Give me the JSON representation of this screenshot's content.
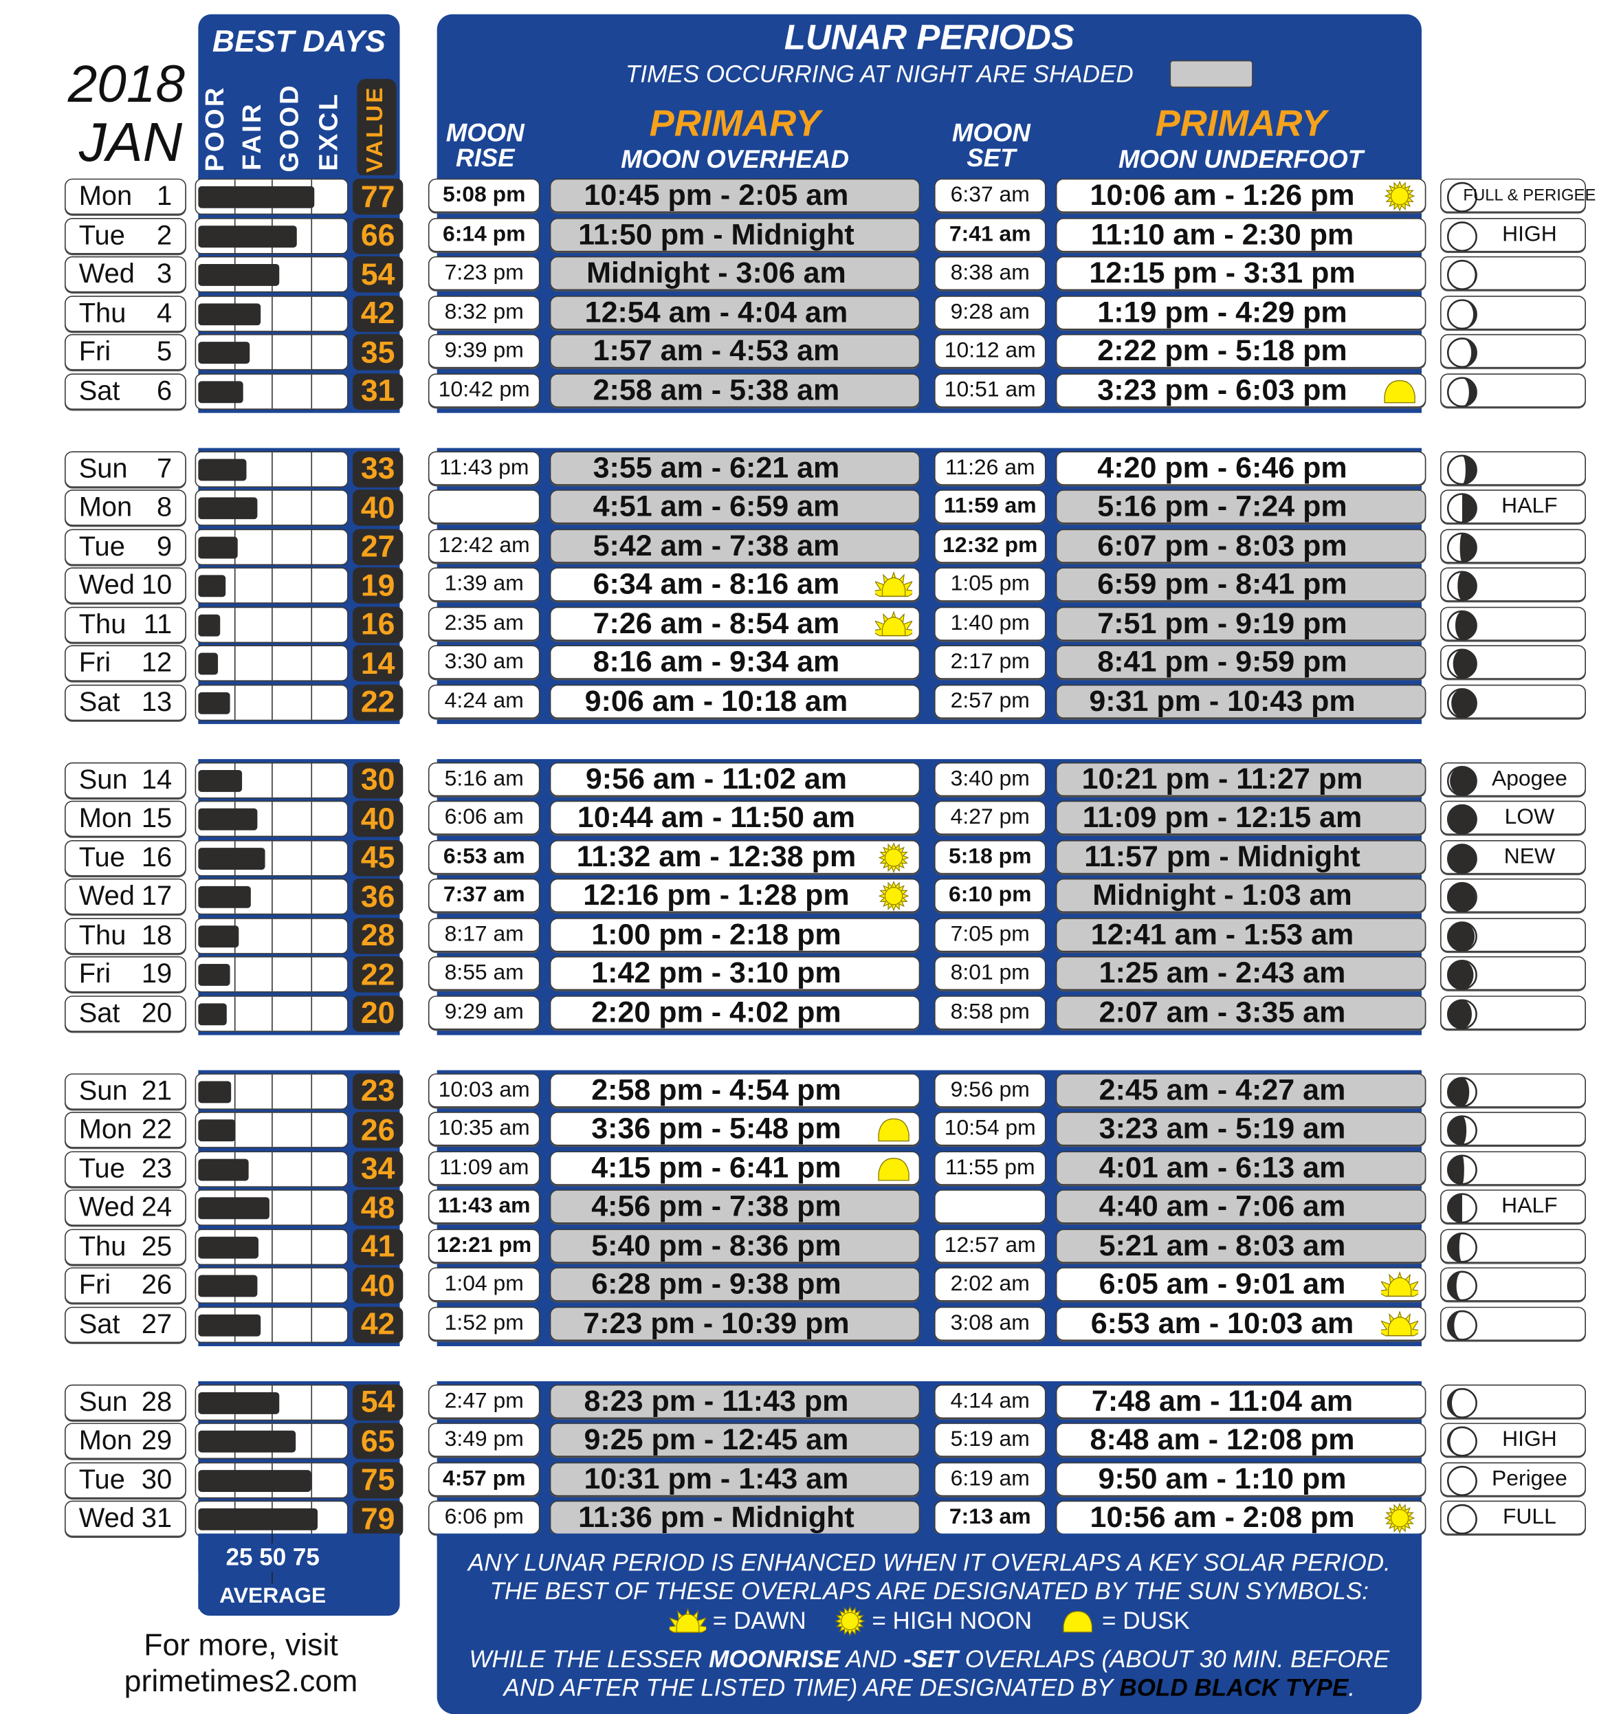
{
  "header": {
    "year": "2018",
    "month": "JAN"
  },
  "best_days": {
    "title": "BEST DAYS",
    "scale_labels": [
      "POOR",
      "FAIR",
      "GOOD",
      "EXCL"
    ],
    "value_label": "VALUE",
    "axis_ticks": "25 50 75",
    "average_label": "AVERAGE"
  },
  "lunar": {
    "title": "LUNAR PERIODS",
    "subtitle": "TIMES OCCURRING AT NIGHT ARE SHADED",
    "moon_rise": [
      "MOON",
      "RISE"
    ],
    "overhead": [
      "PRIMARY",
      "MOON OVERHEAD"
    ],
    "moon_set": [
      "MOON",
      "SET"
    ],
    "underfoot": [
      "PRIMARY",
      "MOON UNDERFOOT"
    ]
  },
  "colors": {
    "panel": "#1c4595",
    "night_shade": "#c9c9c9",
    "value_text": "#f7a21b",
    "sun": "#ffef00",
    "bar": "#2e2c2b"
  },
  "days": [
    {
      "dow": "Mon",
      "day": "1",
      "value": 77,
      "rise": "5:08 pm",
      "rise_bold": true,
      "over": "10:45 pm - 2:05 am",
      "over_night": true,
      "over_sun": null,
      "set": "6:37 am",
      "set_bold": false,
      "under": "10:06 am - 1:26 pm",
      "under_night": false,
      "under_sun": "noon",
      "lit": 1.0,
      "waxing": false,
      "phase_label": "FULL & PERIGEE"
    },
    {
      "dow": "Tue",
      "day": "2",
      "value": 66,
      "rise": "6:14 pm",
      "rise_bold": true,
      "over": "11:50 pm - Midnight",
      "over_night": true,
      "over_sun": null,
      "set": "7:41 am",
      "set_bold": true,
      "under": "11:10 am - 2:30 pm",
      "under_night": false,
      "under_sun": null,
      "lit": 1.0,
      "waxing": false,
      "phase_label": "HIGH"
    },
    {
      "dow": "Wed",
      "day": "3",
      "value": 54,
      "rise": "7:23 pm",
      "rise_bold": false,
      "over": "Midnight - 3:06 am",
      "over_night": true,
      "over_sun": null,
      "set": "8:38 am",
      "set_bold": false,
      "under": "12:15 pm - 3:31 pm",
      "under_night": false,
      "under_sun": null,
      "lit": 0.95,
      "waxing": false,
      "phase_label": ""
    },
    {
      "dow": "Thu",
      "day": "4",
      "value": 42,
      "rise": "8:32 pm",
      "rise_bold": false,
      "over": "12:54 am - 4:04 am",
      "over_night": true,
      "over_sun": null,
      "set": "9:28 am",
      "set_bold": false,
      "under": "1:19 pm - 4:29 pm",
      "under_night": false,
      "under_sun": null,
      "lit": 0.89,
      "waxing": false,
      "phase_label": ""
    },
    {
      "dow": "Fri",
      "day": "5",
      "value": 35,
      "rise": "9:39 pm",
      "rise_bold": false,
      "over": "1:57 am - 4:53 am",
      "over_night": true,
      "over_sun": null,
      "set": "10:12 am",
      "set_bold": false,
      "under": "2:22 pm - 5:18 pm",
      "under_night": false,
      "under_sun": null,
      "lit": 0.82,
      "waxing": false,
      "phase_label": ""
    },
    {
      "dow": "Sat",
      "day": "6",
      "value": 31,
      "rise": "10:42 pm",
      "rise_bold": false,
      "over": "2:58 am - 5:38 am",
      "over_night": true,
      "over_sun": null,
      "set": "10:51 am",
      "set_bold": false,
      "under": "3:23 pm - 6:03 pm",
      "under_night": false,
      "under_sun": "dusk",
      "lit": 0.74,
      "waxing": false,
      "phase_label": ""
    },
    {
      "dow": "Sun",
      "day": "7",
      "value": 33,
      "rise": "11:43 pm",
      "rise_bold": false,
      "over": "3:55 am - 6:21 am",
      "over_night": true,
      "over_sun": null,
      "set": "11:26 am",
      "set_bold": false,
      "under": "4:20 pm - 6:46 pm",
      "under_night": false,
      "under_sun": null,
      "lit": 0.62,
      "waxing": false,
      "phase_label": ""
    },
    {
      "dow": "Mon",
      "day": "8",
      "value": 40,
      "rise": "",
      "rise_bold": false,
      "over": "4:51 am - 6:59 am",
      "over_night": true,
      "over_sun": null,
      "set": "11:59 am",
      "set_bold": true,
      "under": "5:16 pm - 7:24 pm",
      "under_night": true,
      "under_sun": null,
      "lit": 0.5,
      "waxing": false,
      "phase_label": "HALF"
    },
    {
      "dow": "Tue",
      "day": "9",
      "value": 27,
      "rise": "12:42 am",
      "rise_bold": false,
      "over": "5:42 am - 7:38 am",
      "over_night": true,
      "over_sun": null,
      "set": "12:32 pm",
      "set_bold": true,
      "under": "6:07 pm - 8:03 pm",
      "under_night": true,
      "under_sun": null,
      "lit": 0.42,
      "waxing": false,
      "phase_label": ""
    },
    {
      "dow": "Wed",
      "day": "10",
      "value": 19,
      "rise": "1:39 am",
      "rise_bold": false,
      "over": "6:34 am - 8:16 am",
      "over_night": false,
      "over_sun": "dawn",
      "set": "1:05 pm",
      "set_bold": false,
      "under": "6:59 pm - 8:41 pm",
      "under_night": true,
      "under_sun": null,
      "lit": 0.34,
      "waxing": false,
      "phase_label": ""
    },
    {
      "dow": "Thu",
      "day": "11",
      "value": 16,
      "rise": "2:35 am",
      "rise_bold": false,
      "over": "7:26 am - 8:54 am",
      "over_night": false,
      "over_sun": "dawn",
      "set": "1:40 pm",
      "set_bold": false,
      "under": "7:51 pm - 9:19 pm",
      "under_night": true,
      "under_sun": null,
      "lit": 0.26,
      "waxing": false,
      "phase_label": ""
    },
    {
      "dow": "Fri",
      "day": "12",
      "value": 14,
      "rise": "3:30 am",
      "rise_bold": false,
      "over": "8:16 am - 9:34 am",
      "over_night": false,
      "over_sun": null,
      "set": "2:17 pm",
      "set_bold": false,
      "under": "8:41 pm - 9:59 pm",
      "under_night": true,
      "under_sun": null,
      "lit": 0.18,
      "waxing": false,
      "phase_label": ""
    },
    {
      "dow": "Sat",
      "day": "13",
      "value": 22,
      "rise": "4:24 am",
      "rise_bold": false,
      "over": "9:06 am - 10:18 am",
      "over_night": false,
      "over_sun": null,
      "set": "2:57 pm",
      "set_bold": false,
      "under": "9:31 pm - 10:43 pm",
      "under_night": true,
      "under_sun": null,
      "lit": 0.12,
      "waxing": false,
      "phase_label": ""
    },
    {
      "dow": "Sun",
      "day": "14",
      "value": 30,
      "rise": "5:16 am",
      "rise_bold": false,
      "over": "9:56 am - 11:02 am",
      "over_night": false,
      "over_sun": null,
      "set": "3:40 pm",
      "set_bold": false,
      "under": "10:21 pm - 11:27 pm",
      "under_night": true,
      "under_sun": null,
      "lit": 0.07,
      "waxing": false,
      "phase_label": "Apogee"
    },
    {
      "dow": "Mon",
      "day": "15",
      "value": 40,
      "rise": "6:06 am",
      "rise_bold": false,
      "over": "10:44 am - 11:50 am",
      "over_night": false,
      "over_sun": null,
      "set": "4:27 pm",
      "set_bold": false,
      "under": "11:09 pm - 12:15 am",
      "under_night": true,
      "under_sun": null,
      "lit": 0.03,
      "waxing": false,
      "phase_label": "LOW"
    },
    {
      "dow": "Tue",
      "day": "16",
      "value": 45,
      "rise": "6:53 am",
      "rise_bold": true,
      "over": "11:32 am - 12:38 pm",
      "over_night": false,
      "over_sun": "noon",
      "set": "5:18 pm",
      "set_bold": true,
      "under": "11:57 pm - Midnight",
      "under_night": true,
      "under_sun": null,
      "lit": 0.0,
      "waxing": false,
      "phase_label": "NEW"
    },
    {
      "dow": "Wed",
      "day": "17",
      "value": 36,
      "rise": "7:37 am",
      "rise_bold": true,
      "over": "12:16 pm - 1:28 pm",
      "over_night": false,
      "over_sun": "noon",
      "set": "6:10 pm",
      "set_bold": true,
      "under": "Midnight - 1:03 am",
      "under_night": true,
      "under_sun": null,
      "lit": 0.03,
      "waxing": true,
      "phase_label": ""
    },
    {
      "dow": "Thu",
      "day": "18",
      "value": 28,
      "rise": "8:17 am",
      "rise_bold": false,
      "over": "1:00 pm - 2:18 pm",
      "over_night": false,
      "over_sun": null,
      "set": "7:05 pm",
      "set_bold": false,
      "under": "12:41 am - 1:53 am",
      "under_night": true,
      "under_sun": null,
      "lit": 0.06,
      "waxing": true,
      "phase_label": ""
    },
    {
      "dow": "Fri",
      "day": "19",
      "value": 22,
      "rise": "8:55 am",
      "rise_bold": false,
      "over": "1:42 pm - 3:10 pm",
      "over_night": false,
      "over_sun": null,
      "set": "8:01 pm",
      "set_bold": false,
      "under": "1:25 am - 2:43 am",
      "under_night": true,
      "under_sun": null,
      "lit": 0.1,
      "waxing": true,
      "phase_label": ""
    },
    {
      "dow": "Sat",
      "day": "20",
      "value": 20,
      "rise": "9:29 am",
      "rise_bold": false,
      "over": "2:20 pm - 4:02 pm",
      "over_night": false,
      "over_sun": null,
      "set": "8:58 pm",
      "set_bold": false,
      "under": "2:07 am - 3:35 am",
      "under_night": true,
      "under_sun": null,
      "lit": 0.16,
      "waxing": true,
      "phase_label": ""
    },
    {
      "dow": "Sun",
      "day": "21",
      "value": 23,
      "rise": "10:03 am",
      "rise_bold": false,
      "over": "2:58 pm - 4:54 pm",
      "over_night": false,
      "over_sun": null,
      "set": "9:56 pm",
      "set_bold": false,
      "under": "2:45 am - 4:27 am",
      "under_night": true,
      "under_sun": null,
      "lit": 0.25,
      "waxing": true,
      "phase_label": ""
    },
    {
      "dow": "Mon",
      "day": "22",
      "value": 26,
      "rise": "10:35 am",
      "rise_bold": false,
      "over": "3:36 pm - 5:48 pm",
      "over_night": false,
      "over_sun": "dusk",
      "set": "10:54 pm",
      "set_bold": false,
      "under": "3:23 am - 5:19 am",
      "under_night": true,
      "under_sun": null,
      "lit": 0.35,
      "waxing": true,
      "phase_label": ""
    },
    {
      "dow": "Tue",
      "day": "23",
      "value": 34,
      "rise": "11:09 am",
      "rise_bold": false,
      "over": "4:15 pm - 6:41 pm",
      "over_night": false,
      "over_sun": "dusk",
      "set": "11:55 pm",
      "set_bold": false,
      "under": "4:01 am - 6:13 am",
      "under_night": true,
      "under_sun": null,
      "lit": 0.43,
      "waxing": true,
      "phase_label": ""
    },
    {
      "dow": "Wed",
      "day": "24",
      "value": 48,
      "rise": "11:43 am",
      "rise_bold": true,
      "over": "4:56 pm - 7:38 pm",
      "over_night": true,
      "over_sun": null,
      "set": "",
      "set_bold": false,
      "under": "4:40 am - 7:06 am",
      "under_night": true,
      "under_sun": null,
      "lit": 0.5,
      "waxing": true,
      "phase_label": "HALF"
    },
    {
      "dow": "Thu",
      "day": "25",
      "value": 41,
      "rise": "12:21 pm",
      "rise_bold": true,
      "over": "5:40 pm - 8:36 pm",
      "over_night": true,
      "over_sun": null,
      "set": "12:57 am",
      "set_bold": false,
      "under": "5:21 am - 8:03 am",
      "under_night": true,
      "under_sun": null,
      "lit": 0.6,
      "waxing": true,
      "phase_label": ""
    },
    {
      "dow": "Fri",
      "day": "26",
      "value": 40,
      "rise": "1:04 pm",
      "rise_bold": false,
      "over": "6:28 pm - 9:38 pm",
      "over_night": true,
      "over_sun": null,
      "set": "2:02 am",
      "set_bold": false,
      "under": "6:05 am - 9:01 am",
      "under_night": false,
      "under_sun": "dawn",
      "lit": 0.7,
      "waxing": true,
      "phase_label": ""
    },
    {
      "dow": "Sat",
      "day": "27",
      "value": 42,
      "rise": "1:52 pm",
      "rise_bold": false,
      "over": "7:23 pm - 10:39 pm",
      "over_night": true,
      "over_sun": null,
      "set": "3:08 am",
      "set_bold": false,
      "under": "6:53 am - 10:03 am",
      "under_night": false,
      "under_sun": "dawn",
      "lit": 0.78,
      "waxing": true,
      "phase_label": ""
    },
    {
      "dow": "Sun",
      "day": "28",
      "value": 54,
      "rise": "2:47 pm",
      "rise_bold": false,
      "over": "8:23 pm - 11:43 pm",
      "over_night": true,
      "over_sun": null,
      "set": "4:14 am",
      "set_bold": false,
      "under": "7:48 am - 11:04 am",
      "under_night": false,
      "under_sun": null,
      "lit": 0.86,
      "waxing": true,
      "phase_label": ""
    },
    {
      "dow": "Mon",
      "day": "29",
      "value": 65,
      "rise": "3:49 pm",
      "rise_bold": false,
      "over": "9:25 pm - 12:45 am",
      "over_night": true,
      "over_sun": null,
      "set": "5:19 am",
      "set_bold": false,
      "under": "8:48 am - 12:08 pm",
      "under_night": false,
      "under_sun": null,
      "lit": 0.92,
      "waxing": true,
      "phase_label": "HIGH"
    },
    {
      "dow": "Tue",
      "day": "30",
      "value": 75,
      "rise": "4:57 pm",
      "rise_bold": true,
      "over": "10:31 pm - 1:43 am",
      "over_night": true,
      "over_sun": null,
      "set": "6:19 am",
      "set_bold": false,
      "under": "9:50 am - 1:10 pm",
      "under_night": false,
      "under_sun": null,
      "lit": 0.97,
      "waxing": true,
      "phase_label": "Perigee"
    },
    {
      "dow": "Wed",
      "day": "31",
      "value": 79,
      "rise": "6:06 pm",
      "rise_bold": false,
      "over": "11:36 pm - Midnight",
      "over_night": true,
      "over_sun": null,
      "set": "7:13 am",
      "set_bold": true,
      "under": "10:56 am - 2:08 pm",
      "under_night": false,
      "under_sun": "noon",
      "lit": 1.0,
      "waxing": true,
      "phase_label": "FULL"
    }
  ],
  "legend": {
    "line1": "ANY LUNAR PERIOD IS ENHANCED WHEN IT OVERLAPS A KEY SOLAR PERIOD.",
    "line2": "THE BEST OF THESE OVERLAPS ARE DESIGNATED BY THE SUN SYMBOLS:",
    "dawn": "= DAWN",
    "noon": "= HIGH NOON",
    "dusk": "= DUSK",
    "line4_a": "WHILE THE LESSER ",
    "line4_b": "MOONRISE",
    "line4_c": " AND ",
    "line4_d": "-SET",
    "line4_e": " OVERLAPS (ABOUT 30 MIN. BEFORE",
    "line5_a": "AND AFTER THE LISTED TIME) ARE DESIGNATED BY ",
    "line5_b": "BOLD BLACK TYPE",
    "line5_c": "."
  },
  "promo": {
    "line1": "For more, visit",
    "line2": "primetimes2.com"
  }
}
